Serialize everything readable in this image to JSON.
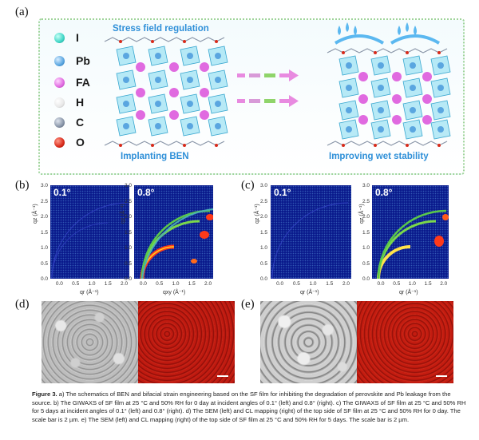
{
  "panel_labels": {
    "a": "(a)",
    "b": "(b)",
    "c": "(c)",
    "d": "(d)",
    "e": "(e)"
  },
  "schematic": {
    "legend": [
      {
        "symbol": "I",
        "color": "#3fd6c6"
      },
      {
        "symbol": "Pb",
        "color": "#5aa6e0"
      },
      {
        "symbol": "FA",
        "color": "#e06ae0"
      },
      {
        "symbol": "H",
        "color": "#eeeeee"
      },
      {
        "symbol": "C",
        "color": "#8895a8"
      },
      {
        "symbol": "O",
        "color": "#d82a1a"
      }
    ],
    "title_left_top": "Stress field regulation",
    "title_left_bottom": "Implanting BEN",
    "title_right_bottom": "Improving wet stability"
  },
  "giwaxs": {
    "angle_left": "0.1°",
    "angle_right": "0.8°",
    "y_ticks": [
      "3.0",
      "2.5",
      "2.0",
      "1.5",
      "1.0",
      "0.5",
      "0.0"
    ],
    "x_ticks": [
      "0.0",
      "0.5",
      "1.0",
      "1.5",
      "2.0"
    ],
    "ylabel": "qz (Å⁻¹)",
    "xlabel": "qr (Å⁻¹)",
    "xlabel_alt": "qxy (Å⁻¹)"
  },
  "caption": {
    "lead": "Figure 3.",
    "text": " a) The schematics of BEN and bifacial strain engineering based on the SF film for inhibiting the degradation of perovskite and Pb leakage from the source. b) The GIWAXS of SF film at 25 °C and 50% RH for 0 day at incident angles of 0.1° (left) and 0.8° (right). c) The GIWAXS of SF film at 25 °C and 50% RH for 5 days at incident angles of 0.1° (left) and 0.8° (right). d) The SEM (left) and CL mapping (right) of the top side of SF film at 25 °C and 50% RH for 0 day. The scale bar is 2 µm. e) The SEM (left) and CL mapping (right) of the top side of SF film at 25 °C and 50% RH for 5 days. The scale bar is 2 µm."
  }
}
